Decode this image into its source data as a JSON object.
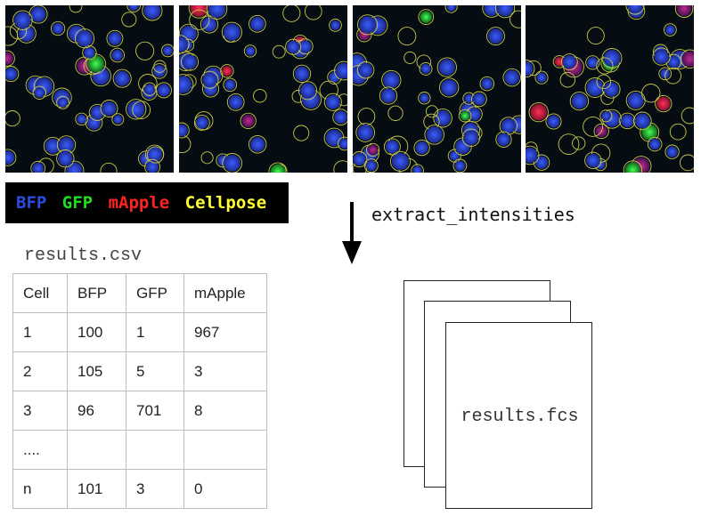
{
  "microscopy_panels": [
    {
      "label": "panel-1"
    },
    {
      "label": "panel-2"
    },
    {
      "label": "panel-3"
    },
    {
      "label": "panel-4"
    }
  ],
  "legend": {
    "items": [
      {
        "text": "BFP",
        "color": "#2a4de0"
      },
      {
        "text": "GFP",
        "color": "#22dd22"
      },
      {
        "text": "mApple",
        "color": "#ff2222"
      },
      {
        "text": "Cellpose",
        "color": "#ffff33"
      }
    ]
  },
  "arrow_icon": "down-arrow-icon",
  "function_name": "extract_intensities",
  "csv": {
    "title": "results.csv",
    "headers": [
      "Cell",
      "BFP",
      "GFP",
      "mApple"
    ],
    "rows": [
      [
        "1",
        "100",
        "1",
        "967"
      ],
      [
        "2",
        "105",
        "5",
        "3"
      ],
      [
        "3",
        "96",
        "701",
        "8"
      ],
      [
        "....",
        "",
        "",
        ""
      ],
      [
        "n",
        "101",
        "3",
        "0"
      ]
    ]
  },
  "fcs": {
    "label": "results.fcs"
  }
}
